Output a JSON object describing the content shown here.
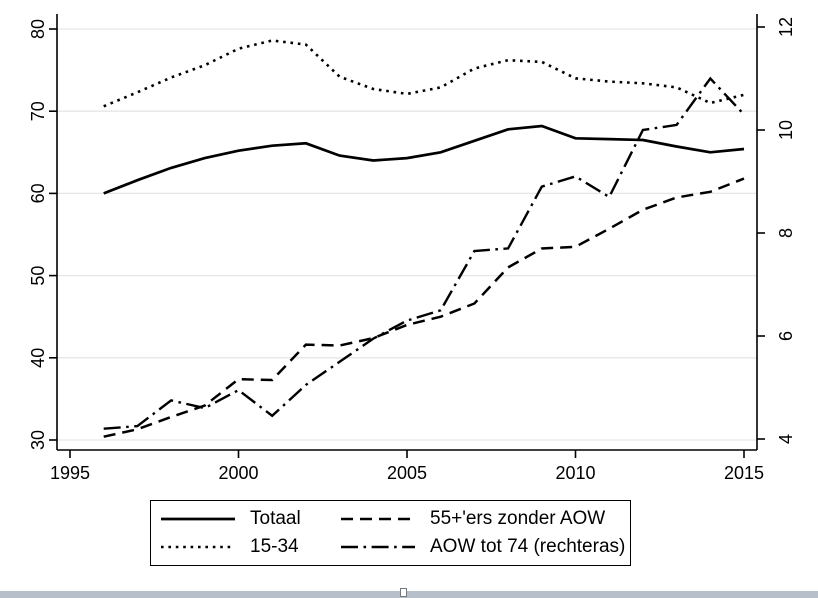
{
  "chart_data": {
    "type": "line",
    "x": [
      1996,
      1997,
      1998,
      1999,
      2000,
      2001,
      2002,
      2003,
      2004,
      2005,
      2006,
      2007,
      2008,
      2009,
      2010,
      2011,
      2012,
      2013,
      2014,
      2015
    ],
    "series": [
      {
        "name": "Totaal",
        "axis": "left",
        "line_style": "solid",
        "values": [
          60.0,
          61.6,
          63.1,
          64.3,
          65.2,
          65.8,
          66.1,
          64.6,
          64.0,
          64.3,
          65.0,
          66.4,
          67.8,
          68.2,
          66.7,
          66.6,
          66.5,
          65.7,
          65.0,
          65.4
        ]
      },
      {
        "name": "55+'ers zonder AOW",
        "axis": "left",
        "line_style": "dashed",
        "values": [
          30.4,
          31.3,
          32.8,
          34.2,
          37.4,
          37.3,
          41.6,
          41.5,
          42.4,
          44.0,
          45.0,
          46.6,
          51.0,
          53.3,
          53.5,
          55.7,
          58.0,
          59.5,
          60.2,
          61.8
        ]
      },
      {
        "name": "15-34",
        "axis": "left",
        "line_style": "dotted",
        "values": [
          70.6,
          72.3,
          74.1,
          75.6,
          77.6,
          78.6,
          78.1,
          74.2,
          72.7,
          72.1,
          72.9,
          75.2,
          76.2,
          76.0,
          74.0,
          73.6,
          73.4,
          72.9,
          71.0,
          72.0
        ]
      },
      {
        "name": "AOW tot 74 (rechteras)",
        "axis": "right",
        "line_style": "dash-dot",
        "values": [
          4.2,
          4.25,
          4.75,
          4.6,
          4.95,
          4.45,
          5.05,
          5.5,
          5.95,
          6.3,
          6.5,
          7.65,
          7.7,
          8.9,
          9.1,
          8.7,
          10.0,
          10.1,
          11.0,
          10.3
        ]
      }
    ],
    "x_axis": {
      "ticks": [
        1995,
        2000,
        2005,
        2010,
        2015
      ],
      "range": [
        1994.6,
        2015.4
      ]
    },
    "left_axis": {
      "ticks": [
        30,
        40,
        50,
        60,
        70,
        80
      ],
      "range": [
        28.8,
        81.8
      ]
    },
    "right_axis": {
      "ticks": [
        4,
        6,
        8,
        10,
        12
      ],
      "range": [
        3.8,
        12.3
      ]
    },
    "title": "",
    "xlabel": "",
    "ylabel_left": "",
    "ylabel_right": "",
    "grid": true,
    "legend_position": "bottom",
    "line_color": "#000000",
    "grid_color": "#e6e6e6"
  },
  "ui": {
    "background_color": "#ffffff",
    "splitter_bar_color": "#b6bfca"
  }
}
